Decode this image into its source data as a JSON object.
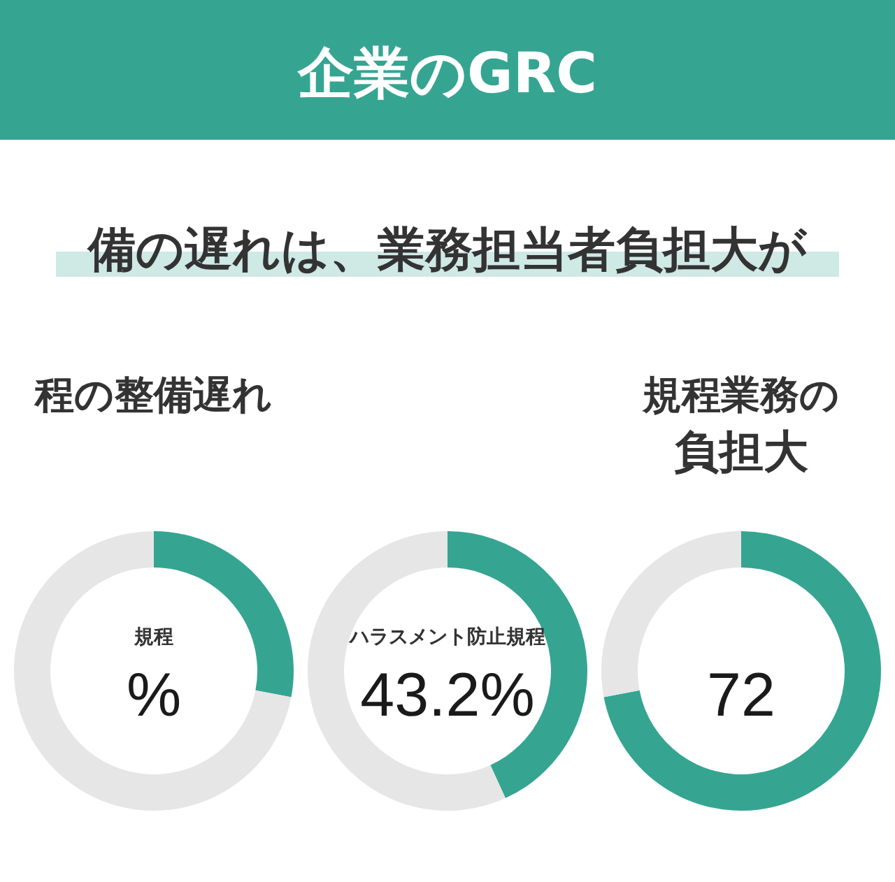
{
  "chart_data": [
    {
      "type": "other",
      "title": "企業のGRC",
      "subtitle": "備の遅れは、業務担当者負担大が"
    },
    {
      "type": "donut",
      "title": "程の整備遅れ",
      "categories": [
        "規程",
        null
      ],
      "values": [
        28,
        72
      ],
      "colors": [
        "#35a592",
        "#e6e6e6"
      ],
      "value_labels": [
        "%",
        null
      ]
    },
    {
      "type": "donut",
      "categories": [
        "ハラスメント防止規程",
        null
      ],
      "values": [
        43.2,
        56.8
      ],
      "colors": [
        "#35a592",
        "#e6e6e6"
      ],
      "value_labels": [
        "43.2%",
        null
      ]
    },
    {
      "type": "donut",
      "title": "規程業務の",
      "subtitle": "負担大",
      "categories": [
        null,
        null
      ],
      "values": [
        72,
        28
      ],
      "colors": [
        "#35a592",
        "#e6e6e6"
      ],
      "value_labels": [
        "72",
        null
      ]
    }
  ]
}
